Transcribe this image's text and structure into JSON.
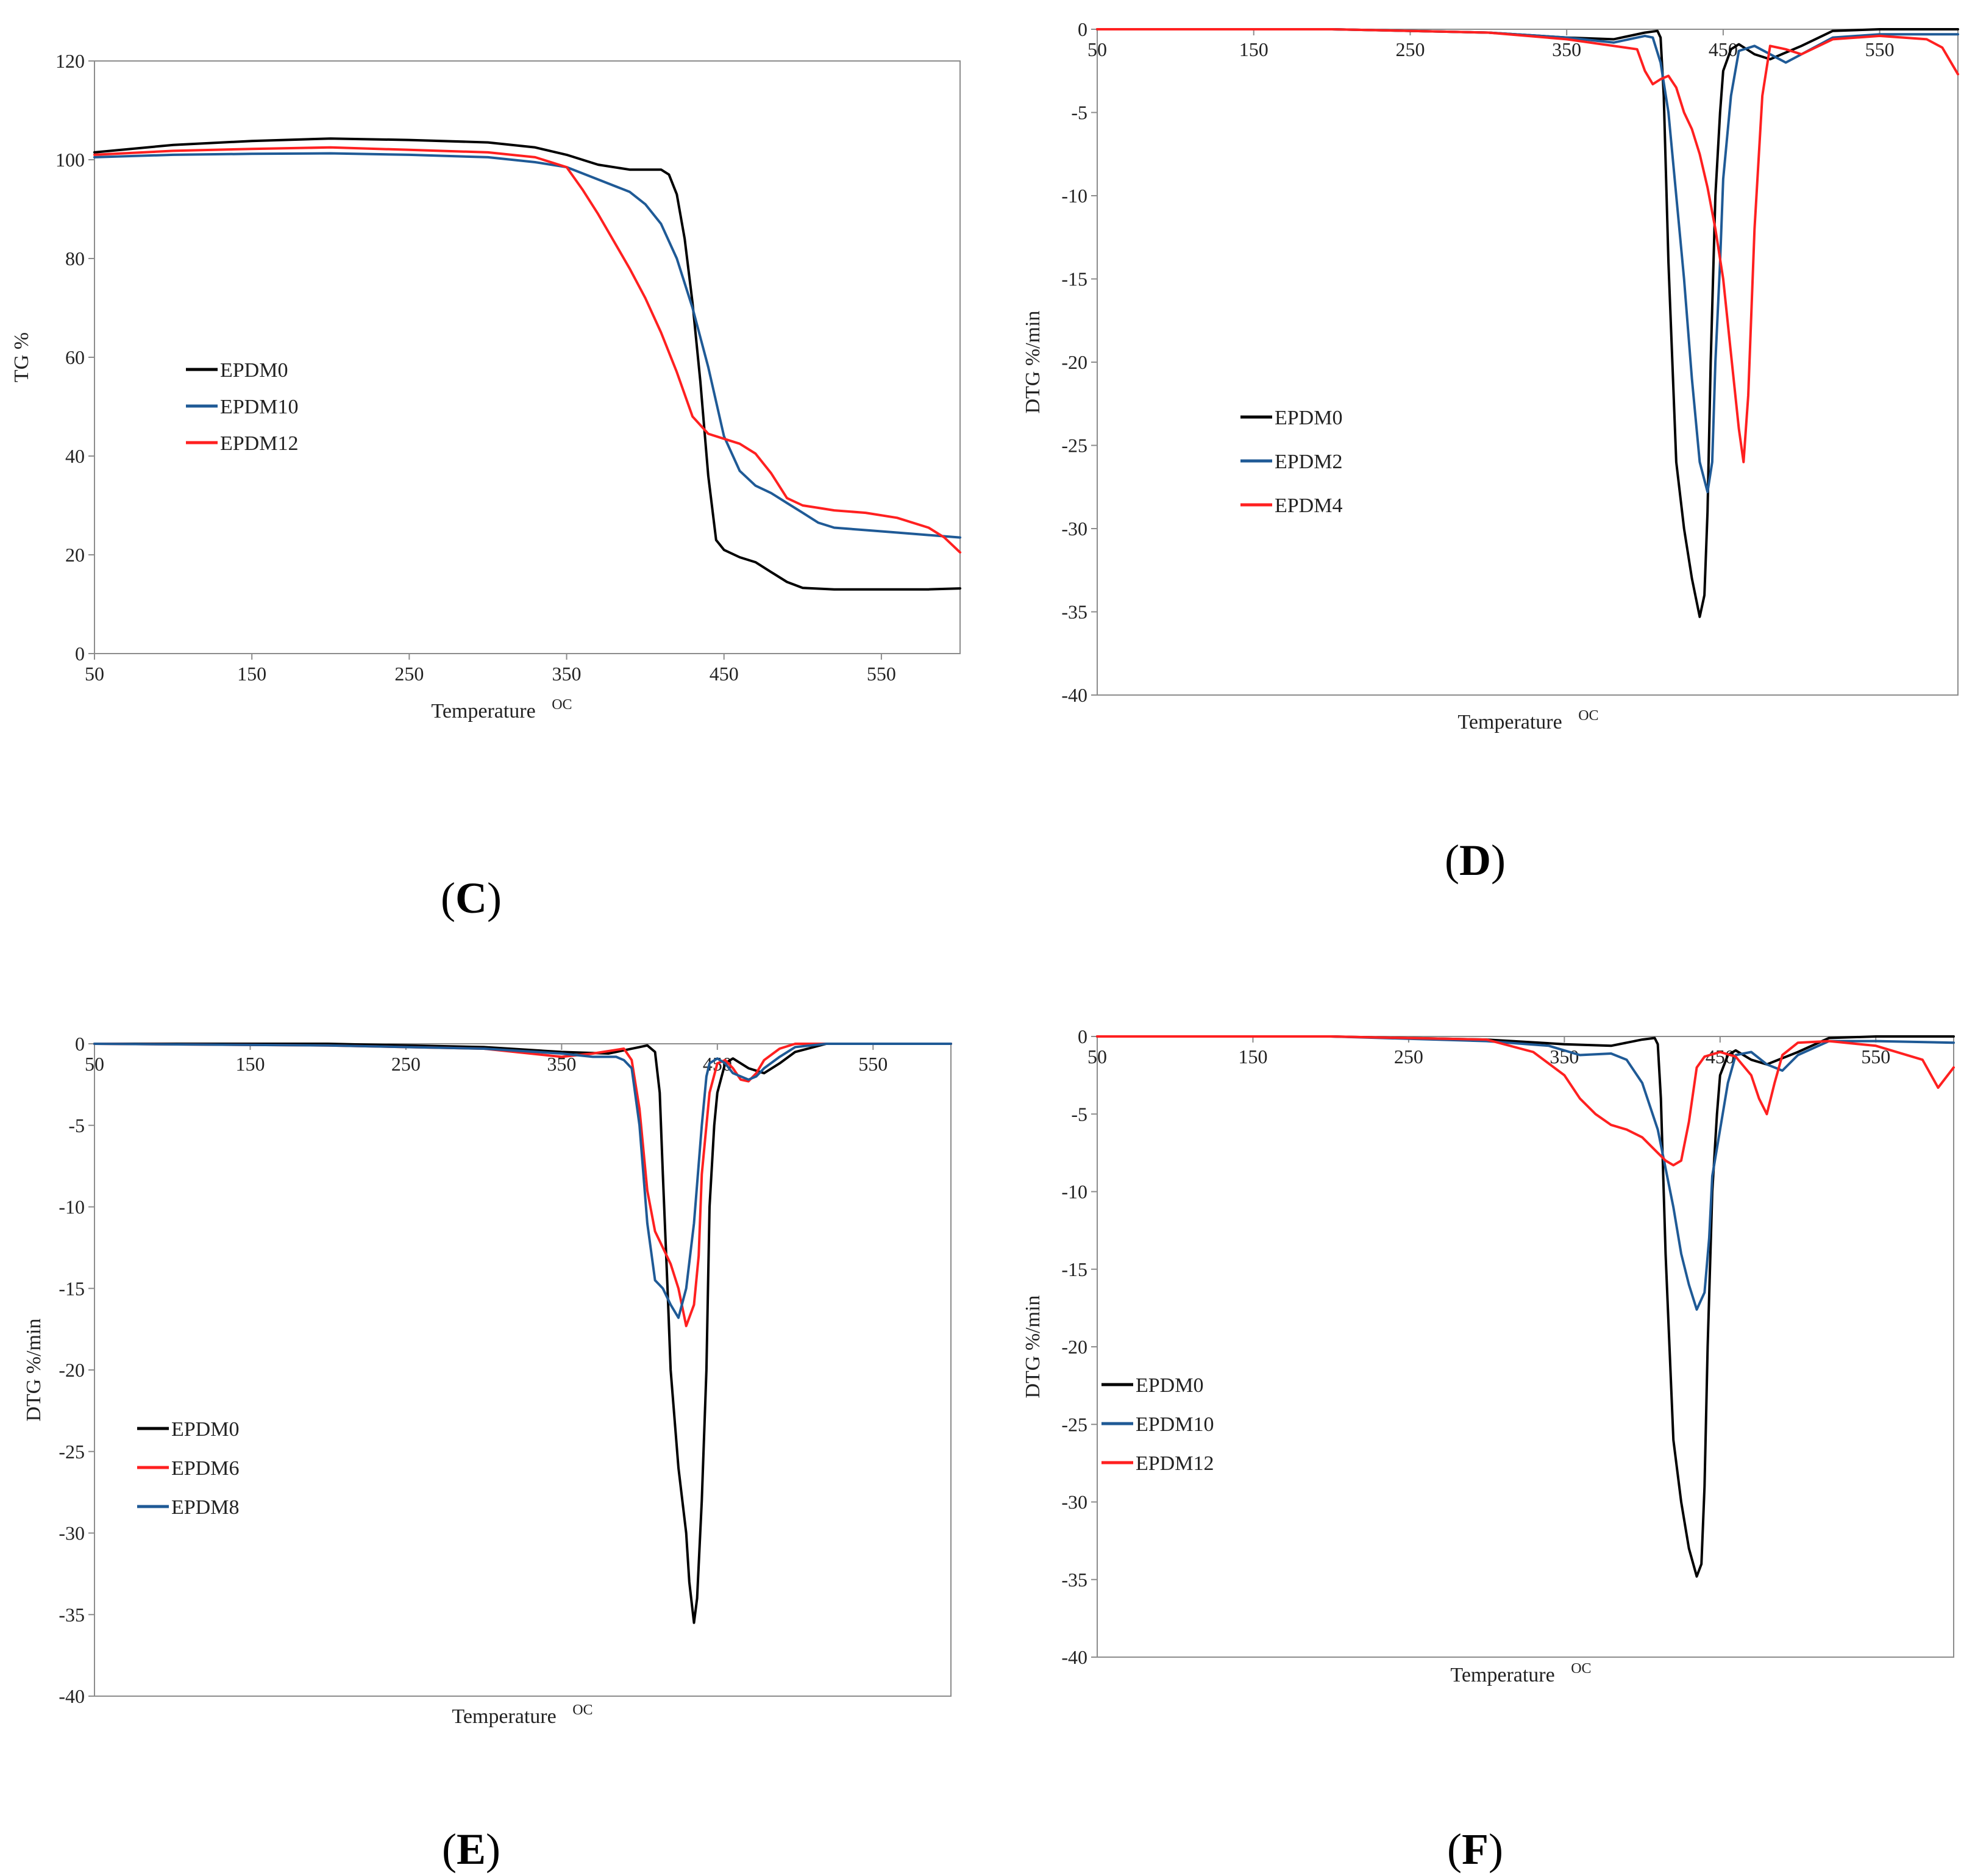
{
  "figure": {
    "panel_labels": [
      "C",
      "D",
      "E",
      "F"
    ]
  },
  "chart_data": [
    {
      "id": "C",
      "panel_label": "C",
      "type": "line",
      "title": "",
      "xlabel": "Temperature",
      "xlabel_unit": "OC",
      "ylabel": "TG %",
      "xlim": [
        50,
        600
      ],
      "ylim": [
        0,
        120
      ],
      "xticks": [
        50,
        150,
        250,
        350,
        450,
        550
      ],
      "yticks": [
        0,
        20,
        40,
        60,
        80,
        100,
        120
      ],
      "x_tick_position": "bottom",
      "legend_position": "middle-left",
      "grid": false,
      "colors": {
        "EPDM0": "#000000",
        "EPDM10": "#1f5a96",
        "EPDM12": "#ff2020"
      },
      "series": [
        {
          "name": "EPDM0",
          "x": [
            50,
            100,
            150,
            200,
            250,
            300,
            330,
            350,
            370,
            390,
            410,
            415,
            420,
            425,
            430,
            435,
            440,
            445,
            450,
            460,
            470,
            480,
            490,
            500,
            520,
            550,
            580,
            600
          ],
          "y": [
            101.5,
            103,
            103.8,
            104.3,
            104,
            103.5,
            102.5,
            101,
            99,
            98,
            98,
            97,
            93,
            84,
            71,
            55,
            36,
            23,
            21,
            19.5,
            18.5,
            16.5,
            14.5,
            13.3,
            13,
            13,
            13,
            13.2
          ]
        },
        {
          "name": "EPDM10",
          "x": [
            50,
            100,
            150,
            200,
            250,
            300,
            330,
            350,
            370,
            390,
            400,
            410,
            420,
            430,
            440,
            450,
            460,
            470,
            480,
            490,
            500,
            510,
            520,
            540,
            560,
            580,
            600
          ],
          "y": [
            100.5,
            101,
            101.2,
            101.3,
            101,
            100.5,
            99.5,
            98.5,
            96,
            93.5,
            91,
            87,
            80,
            70,
            58,
            44,
            37,
            34,
            32.5,
            30.5,
            28.5,
            26.5,
            25.5,
            25,
            24.5,
            24,
            23.5
          ]
        },
        {
          "name": "EPDM12",
          "x": [
            50,
            100,
            150,
            200,
            250,
            300,
            330,
            350,
            360,
            370,
            380,
            390,
            400,
            410,
            420,
            430,
            440,
            450,
            460,
            470,
            480,
            490,
            500,
            510,
            520,
            540,
            560,
            580,
            590,
            600
          ],
          "y": [
            101,
            101.8,
            102.2,
            102.5,
            102,
            101.5,
            100.5,
            98.5,
            94,
            89,
            83.5,
            78,
            72,
            65,
            57,
            48,
            44.5,
            43.5,
            42.5,
            40.5,
            36.5,
            31.5,
            30,
            29.5,
            29,
            28.5,
            27.5,
            25.5,
            23.5,
            20.5
          ]
        }
      ]
    },
    {
      "id": "D",
      "panel_label": "D",
      "type": "line",
      "title": "",
      "xlabel": "Temperature",
      "xlabel_unit": "OC",
      "ylabel": "DTG %/min",
      "xlim": [
        50,
        600
      ],
      "ylim": [
        -40,
        0
      ],
      "xticks": [
        50,
        150,
        250,
        350,
        450,
        550
      ],
      "yticks": [
        0,
        -5,
        -10,
        -15,
        -20,
        -25,
        -30,
        -35,
        -40
      ],
      "x_tick_position": "top",
      "legend_position": "middle-left",
      "grid": false,
      "colors": {
        "EPDM0": "#000000",
        "EPDM2": "#1f5a96",
        "EPDM4": "#ff2020"
      },
      "series": [
        {
          "name": "EPDM0",
          "x": [
            50,
            200,
            300,
            350,
            380,
            400,
            408,
            410,
            412,
            415,
            420,
            425,
            430,
            435,
            438,
            440,
            442,
            445,
            448,
            450,
            455,
            460,
            470,
            480,
            500,
            520,
            550,
            580,
            600
          ],
          "y": [
            0,
            0,
            -0.2,
            -0.5,
            -0.6,
            -0.2,
            -0.1,
            -0.5,
            -4,
            -14,
            -26,
            -30,
            -33,
            -35.3,
            -34,
            -29,
            -20,
            -10,
            -5,
            -2.5,
            -1.2,
            -0.9,
            -1.5,
            -1.8,
            -1,
            -0.1,
            0,
            0,
            0
          ]
        },
        {
          "name": "EPDM2",
          "x": [
            50,
            200,
            300,
            350,
            380,
            400,
            405,
            410,
            415,
            420,
            425,
            430,
            435,
            440,
            443,
            445,
            448,
            450,
            455,
            460,
            470,
            490,
            500,
            520,
            550,
            580,
            600
          ],
          "y": [
            0,
            0,
            -0.2,
            -0.5,
            -0.8,
            -0.4,
            -0.5,
            -2,
            -5,
            -10,
            -15,
            -21,
            -26,
            -27.8,
            -26,
            -20,
            -14,
            -9,
            -4,
            -1.3,
            -1,
            -2,
            -1.5,
            -0.5,
            -0.3,
            -0.3,
            -0.3
          ]
        },
        {
          "name": "EPDM4",
          "x": [
            50,
            200,
            300,
            350,
            380,
            395,
            400,
            405,
            410,
            415,
            420,
            425,
            430,
            435,
            440,
            445,
            450,
            455,
            460,
            463,
            466,
            470,
            475,
            480,
            490,
            500,
            520,
            550,
            580,
            590,
            600
          ],
          "y": [
            0,
            0,
            -0.2,
            -0.6,
            -1,
            -1.2,
            -2.5,
            -3.3,
            -3,
            -2.8,
            -3.5,
            -5,
            -6,
            -7.5,
            -9.5,
            -12,
            -15,
            -19.5,
            -24,
            -26,
            -22,
            -12,
            -4,
            -1,
            -1.2,
            -1.5,
            -0.6,
            -0.4,
            -0.6,
            -1.1,
            -2.7
          ]
        }
      ]
    },
    {
      "id": "E",
      "panel_label": "E",
      "type": "line",
      "title": "",
      "xlabel": "Temperature",
      "xlabel_unit": "OC",
      "ylabel": "DTG %/min",
      "xlim": [
        50,
        600
      ],
      "ylim": [
        -40,
        0
      ],
      "xticks": [
        50,
        150,
        250,
        350,
        450,
        550
      ],
      "yticks": [
        0,
        -5,
        -10,
        -15,
        -20,
        -25,
        -30,
        -35,
        -40
      ],
      "x_tick_position": "top",
      "legend_position": "bottom-left",
      "grid": false,
      "colors": {
        "EPDM0": "#000000",
        "EPDM6": "#ff2020",
        "EPDM8": "#1f5a96"
      },
      "series": [
        {
          "name": "EPDM0",
          "x": [
            50,
            200,
            300,
            350,
            380,
            400,
            405,
            410,
            413,
            415,
            418,
            420,
            425,
            430,
            432,
            435,
            437,
            440,
            443,
            445,
            448,
            450,
            455,
            460,
            470,
            480,
            490,
            500,
            520,
            550,
            600
          ],
          "y": [
            0,
            0,
            -0.2,
            -0.5,
            -0.6,
            -0.2,
            -0.1,
            -0.5,
            -3,
            -8,
            -15,
            -20,
            -26,
            -30,
            -33,
            -35.5,
            -34,
            -28,
            -20,
            -10,
            -5,
            -3,
            -1.2,
            -0.9,
            -1.5,
            -1.8,
            -1.2,
            -0.5,
            0,
            0,
            0
          ]
        },
        {
          "name": "EPDM6",
          "x": [
            50,
            200,
            300,
            350,
            370,
            390,
            395,
            400,
            405,
            410,
            415,
            420,
            425,
            430,
            435,
            438,
            440,
            445,
            450,
            455,
            460,
            465,
            470,
            475,
            480,
            490,
            500,
            520,
            550,
            600
          ],
          "y": [
            0,
            -0.1,
            -0.3,
            -0.8,
            -0.6,
            -0.3,
            -1,
            -4,
            -9,
            -11.5,
            -12.5,
            -13.5,
            -15,
            -17.3,
            -16,
            -13,
            -8,
            -3,
            -1.2,
            -1,
            -1.5,
            -2.2,
            -2.3,
            -1.8,
            -1,
            -0.3,
            0,
            0,
            0,
            0
          ]
        },
        {
          "name": "EPDM8",
          "x": [
            50,
            200,
            300,
            350,
            370,
            385,
            390,
            395,
            400,
            405,
            410,
            415,
            420,
            425,
            430,
            435,
            440,
            443,
            445,
            450,
            455,
            460,
            470,
            475,
            480,
            490,
            500,
            520,
            550,
            600
          ],
          "y": [
            0,
            -0.1,
            -0.3,
            -0.6,
            -0.8,
            -0.8,
            -1,
            -1.5,
            -5,
            -11,
            -14.5,
            -15,
            -16,
            -16.8,
            -15,
            -11,
            -5,
            -2,
            -1.2,
            -0.9,
            -1.2,
            -1.8,
            -2.2,
            -2,
            -1.5,
            -0.8,
            -0.2,
            0,
            0,
            0
          ]
        }
      ]
    },
    {
      "id": "F",
      "panel_label": "F",
      "type": "line",
      "title": "",
      "xlabel": "Temperature",
      "xlabel_unit": "OC",
      "ylabel": "DTG %/min",
      "xlim": [
        50,
        600
      ],
      "ylim": [
        -40,
        0
      ],
      "xticks": [
        50,
        150,
        250,
        350,
        450,
        550
      ],
      "yticks": [
        0,
        -5,
        -10,
        -15,
        -20,
        -25,
        -30,
        -35,
        -40
      ],
      "x_tick_position": "top",
      "legend_position": "middle-left",
      "grid": false,
      "colors": {
        "EPDM0": "#000000",
        "EPDM10": "#1f5a96",
        "EPDM12": "#ff2020"
      },
      "series": [
        {
          "name": "EPDM0",
          "x": [
            50,
            200,
            300,
            350,
            380,
            400,
            408,
            410,
            412,
            415,
            420,
            425,
            430,
            435,
            438,
            440,
            442,
            445,
            448,
            450,
            455,
            460,
            470,
            480,
            500,
            520,
            550,
            580,
            600
          ],
          "y": [
            0,
            0,
            -0.2,
            -0.5,
            -0.6,
            -0.2,
            -0.1,
            -0.5,
            -4,
            -14,
            -26,
            -30,
            -33,
            -34.8,
            -34,
            -29,
            -20,
            -10,
            -5,
            -2.5,
            -1.2,
            -0.9,
            -1.5,
            -1.8,
            -1,
            -0.1,
            0,
            0,
            0
          ]
        },
        {
          "name": "EPDM10",
          "x": [
            50,
            200,
            300,
            340,
            360,
            380,
            390,
            400,
            410,
            415,
            420,
            425,
            430,
            435,
            440,
            443,
            445,
            450,
            455,
            460,
            470,
            480,
            490,
            500,
            520,
            550,
            600
          ],
          "y": [
            0,
            0,
            -0.3,
            -0.6,
            -1.2,
            -1.1,
            -1.5,
            -3,
            -6,
            -8.5,
            -11,
            -14,
            -16,
            -17.6,
            -16.5,
            -13,
            -9,
            -6,
            -3,
            -1.2,
            -1,
            -1.8,
            -2.2,
            -1.2,
            -0.3,
            -0.3,
            -0.4
          ]
        },
        {
          "name": "EPDM12",
          "x": [
            50,
            200,
            300,
            330,
            350,
            360,
            370,
            380,
            390,
            400,
            410,
            415,
            420,
            425,
            430,
            435,
            440,
            450,
            460,
            470,
            475,
            480,
            485,
            490,
            500,
            520,
            550,
            580,
            590,
            600
          ],
          "y": [
            0,
            0,
            -0.2,
            -1,
            -2.5,
            -4,
            -5,
            -5.7,
            -6,
            -6.5,
            -7.5,
            -8,
            -8.3,
            -8,
            -5.5,
            -2,
            -1.3,
            -1,
            -1.3,
            -2.5,
            -4,
            -5,
            -3,
            -1.2,
            -0.4,
            -0.3,
            -0.6,
            -1.5,
            -3.3,
            -2
          ]
        }
      ]
    }
  ]
}
